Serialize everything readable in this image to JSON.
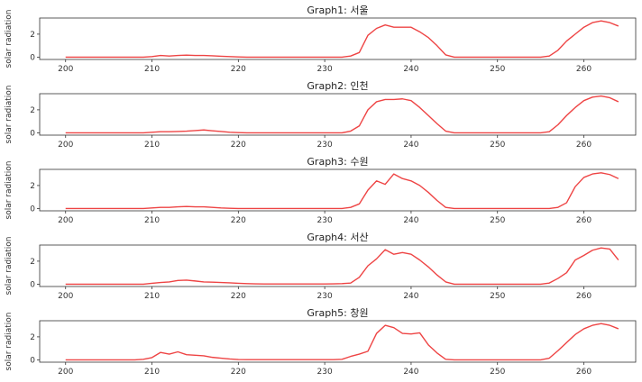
{
  "chart_data": [
    {
      "type": "line",
      "title": "Graph1: 서울",
      "xlabel": "",
      "ylabel": "solar radiation",
      "xlim": [
        197,
        266
      ],
      "ylim": [
        -0.2,
        3.4
      ],
      "xticks": [
        200,
        210,
        220,
        230,
        240,
        250,
        260
      ],
      "yticks": [
        0,
        2
      ],
      "color": "#ee4444",
      "grid": false,
      "x": [
        200,
        201,
        202,
        203,
        204,
        205,
        206,
        207,
        208,
        209,
        210,
        211,
        212,
        213,
        214,
        215,
        216,
        217,
        218,
        219,
        220,
        221,
        222,
        223,
        224,
        225,
        226,
        227,
        228,
        229,
        230,
        231,
        232,
        233,
        234,
        235,
        236,
        237,
        238,
        239,
        240,
        241,
        242,
        243,
        244,
        245,
        246,
        247,
        248,
        249,
        250,
        251,
        252,
        253,
        254,
        255,
        256,
        257,
        258,
        259,
        260,
        261,
        262,
        263,
        264
      ],
      "y": [
        0,
        0,
        0,
        0,
        0,
        0,
        0,
        0,
        0,
        0,
        0.05,
        0.15,
        0.1,
        0.15,
        0.18,
        0.15,
        0.15,
        0.12,
        0.08,
        0.05,
        0.02,
        0,
        0,
        0,
        0,
        0,
        0,
        0,
        0,
        0,
        0,
        0,
        0,
        0.1,
        0.4,
        1.9,
        2.5,
        2.8,
        2.6,
        2.6,
        2.6,
        2.2,
        1.7,
        1.0,
        0.2,
        0,
        0,
        0,
        0,
        0,
        0,
        0,
        0,
        0,
        0,
        0,
        0.1,
        0.6,
        1.4,
        2.0,
        2.6,
        3.0,
        3.15,
        3.0,
        2.7
      ]
    },
    {
      "type": "line",
      "title": "Graph2: 인천",
      "xlabel": "",
      "ylabel": "solar radiation",
      "xlim": [
        197,
        266
      ],
      "ylim": [
        -0.2,
        3.4
      ],
      "xticks": [
        200,
        210,
        220,
        230,
        240,
        250,
        260
      ],
      "yticks": [
        0,
        2
      ],
      "color": "#ee4444",
      "grid": false,
      "x": [
        200,
        201,
        202,
        203,
        204,
        205,
        206,
        207,
        208,
        209,
        210,
        211,
        212,
        213,
        214,
        215,
        216,
        217,
        218,
        219,
        220,
        221,
        222,
        223,
        224,
        225,
        226,
        227,
        228,
        229,
        230,
        231,
        232,
        233,
        234,
        235,
        236,
        237,
        238,
        239,
        240,
        241,
        242,
        243,
        244,
        245,
        246,
        247,
        248,
        249,
        250,
        251,
        252,
        253,
        254,
        255,
        256,
        257,
        258,
        259,
        260,
        261,
        262,
        263,
        264
      ],
      "y": [
        0,
        0,
        0,
        0,
        0,
        0,
        0,
        0,
        0,
        0,
        0.05,
        0.1,
        0.1,
        0.12,
        0.15,
        0.2,
        0.25,
        0.18,
        0.12,
        0.05,
        0.02,
        0,
        0,
        0,
        0,
        0,
        0,
        0,
        0,
        0,
        0,
        0,
        0,
        0.15,
        0.6,
        2.0,
        2.7,
        2.9,
        2.9,
        2.95,
        2.8,
        2.2,
        1.5,
        0.8,
        0.15,
        0,
        0,
        0,
        0,
        0,
        0,
        0,
        0,
        0,
        0,
        0,
        0.1,
        0.7,
        1.5,
        2.2,
        2.8,
        3.1,
        3.2,
        3.05,
        2.7
      ]
    },
    {
      "type": "line",
      "title": "Graph3: 수원",
      "xlabel": "",
      "ylabel": "solar radiation",
      "xlim": [
        197,
        266
      ],
      "ylim": [
        -0.2,
        3.4
      ],
      "xticks": [
        200,
        210,
        220,
        230,
        240,
        250,
        260
      ],
      "yticks": [
        0,
        2
      ],
      "color": "#ee4444",
      "grid": false,
      "x": [
        200,
        201,
        202,
        203,
        204,
        205,
        206,
        207,
        208,
        209,
        210,
        211,
        212,
        213,
        214,
        215,
        216,
        217,
        218,
        219,
        220,
        221,
        222,
        223,
        224,
        225,
        226,
        227,
        228,
        229,
        230,
        231,
        232,
        233,
        234,
        235,
        236,
        237,
        238,
        239,
        240,
        241,
        242,
        243,
        244,
        245,
        246,
        247,
        248,
        249,
        250,
        251,
        252,
        253,
        254,
        255,
        256,
        257,
        258,
        259,
        260,
        261,
        262,
        263,
        264
      ],
      "y": [
        0,
        0,
        0,
        0,
        0,
        0,
        0,
        0,
        0,
        0,
        0.05,
        0.1,
        0.1,
        0.15,
        0.18,
        0.15,
        0.15,
        0.1,
        0.05,
        0.02,
        0,
        0,
        0,
        0,
        0,
        0,
        0,
        0,
        0,
        0,
        0,
        0,
        0,
        0.1,
        0.4,
        1.6,
        2.4,
        2.1,
        3.0,
        2.6,
        2.4,
        2.0,
        1.4,
        0.7,
        0.1,
        0,
        0,
        0,
        0,
        0,
        0,
        0,
        0,
        0,
        0,
        0,
        0,
        0.1,
        0.5,
        1.9,
        2.7,
        3.0,
        3.1,
        2.95,
        2.6
      ]
    },
    {
      "type": "line",
      "title": "Graph4: 서산",
      "xlabel": "",
      "ylabel": "solar radiation",
      "xlim": [
        197,
        266
      ],
      "ylim": [
        -0.2,
        3.4
      ],
      "xticks": [
        200,
        210,
        220,
        230,
        240,
        250,
        260
      ],
      "yticks": [
        0,
        2
      ],
      "color": "#ee4444",
      "grid": false,
      "x": [
        200,
        201,
        202,
        203,
        204,
        205,
        206,
        207,
        208,
        209,
        210,
        211,
        212,
        213,
        214,
        215,
        216,
        217,
        218,
        219,
        220,
        221,
        222,
        223,
        224,
        225,
        226,
        227,
        228,
        229,
        230,
        231,
        232,
        233,
        234,
        235,
        236,
        237,
        238,
        239,
        240,
        241,
        242,
        243,
        244,
        245,
        246,
        247,
        248,
        249,
        250,
        251,
        252,
        253,
        254,
        255,
        256,
        257,
        258,
        259,
        260,
        261,
        262,
        263,
        264
      ],
      "y": [
        0,
        0,
        0,
        0,
        0,
        0,
        0,
        0,
        0,
        0,
        0.08,
        0.15,
        0.2,
        0.32,
        0.35,
        0.28,
        0.2,
        0.18,
        0.15,
        0.12,
        0.08,
        0.05,
        0.03,
        0.02,
        0.02,
        0.02,
        0.02,
        0.02,
        0.02,
        0.02,
        0.02,
        0.03,
        0.05,
        0.1,
        0.6,
        1.6,
        2.2,
        3.0,
        2.6,
        2.75,
        2.6,
        2.1,
        1.5,
        0.8,
        0.2,
        0,
        0,
        0,
        0,
        0,
        0,
        0,
        0,
        0,
        0,
        0,
        0.1,
        0.5,
        1.0,
        2.1,
        2.5,
        2.95,
        3.15,
        3.05,
        2.1
      ]
    },
    {
      "type": "line",
      "title": "Graph5: 창원",
      "xlabel": "",
      "ylabel": "solar radiation",
      "xlim": [
        197,
        266
      ],
      "ylim": [
        -0.2,
        3.4
      ],
      "xticks": [
        200,
        210,
        220,
        230,
        240,
        250,
        260
      ],
      "yticks": [
        0,
        2
      ],
      "color": "#ee4444",
      "grid": false,
      "x": [
        200,
        201,
        202,
        203,
        204,
        205,
        206,
        207,
        208,
        209,
        210,
        211,
        212,
        213,
        214,
        215,
        216,
        217,
        218,
        219,
        220,
        221,
        222,
        223,
        224,
        225,
        226,
        227,
        228,
        229,
        230,
        231,
        232,
        233,
        234,
        235,
        236,
        237,
        238,
        239,
        240,
        241,
        242,
        243,
        244,
        245,
        246,
        247,
        248,
        249,
        250,
        251,
        252,
        253,
        254,
        255,
        256,
        257,
        258,
        259,
        260,
        261,
        262,
        263,
        264
      ],
      "y": [
        0,
        0,
        0,
        0,
        0,
        0,
        0,
        0,
        0,
        0.05,
        0.2,
        0.65,
        0.5,
        0.7,
        0.45,
        0.4,
        0.35,
        0.22,
        0.15,
        0.08,
        0.03,
        0.02,
        0.02,
        0.02,
        0.02,
        0.02,
        0.02,
        0.02,
        0.02,
        0.02,
        0.02,
        0.02,
        0.05,
        0.3,
        0.5,
        0.75,
        2.3,
        3.0,
        2.8,
        2.3,
        2.25,
        2.35,
        1.3,
        0.6,
        0.05,
        0,
        0,
        0,
        0,
        0,
        0,
        0,
        0,
        0,
        0,
        0,
        0.15,
        0.8,
        1.5,
        2.2,
        2.7,
        3.0,
        3.15,
        3.0,
        2.7
      ]
    }
  ]
}
